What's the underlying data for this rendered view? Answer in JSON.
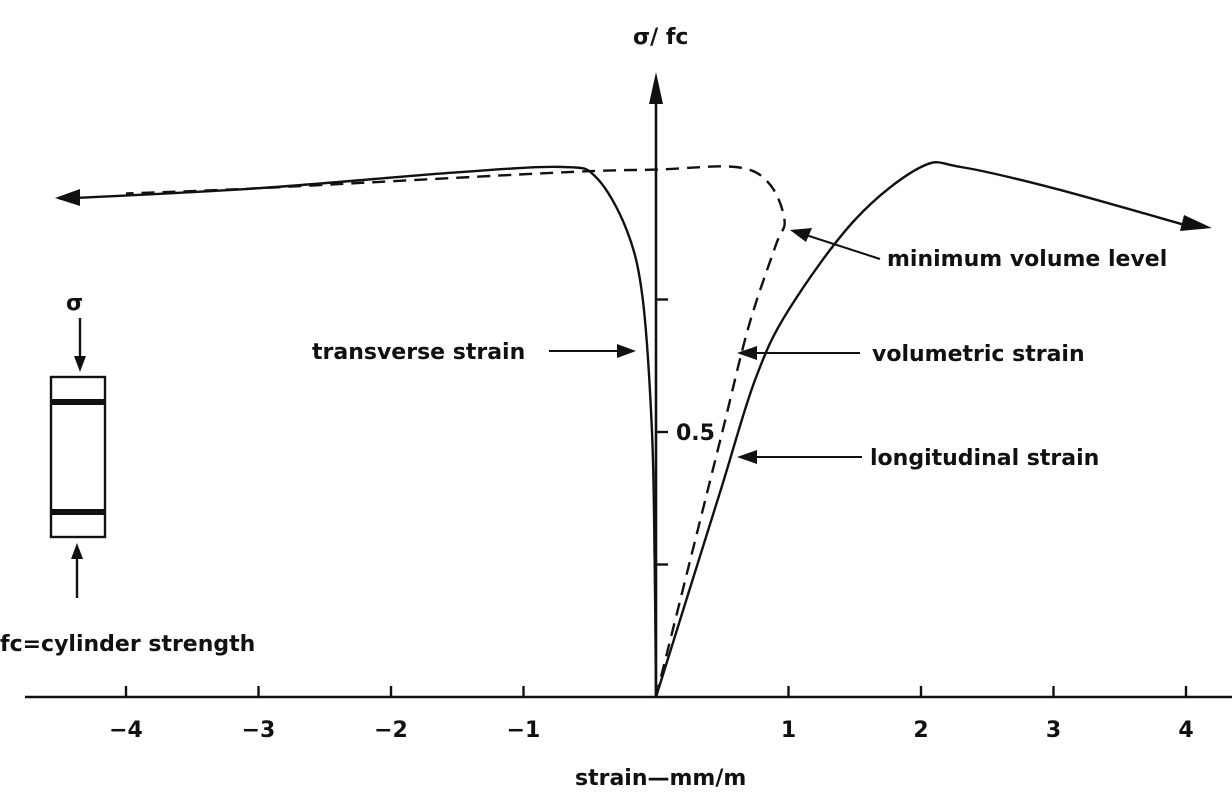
{
  "chart_data": {
    "type": "line",
    "title": "",
    "xlabel": "strain—mm/m",
    "ylabel": "σ/ fc",
    "xlim": [
      -4.8,
      4.3
    ],
    "ylim": [
      0,
      1.05
    ],
    "x_ticks": [
      -4,
      -3,
      -2,
      -1,
      1,
      2,
      3,
      4
    ],
    "x_tick_labels": [
      "−4",
      "−3",
      "−2",
      "−1",
      "1",
      "2",
      "3",
      "4"
    ],
    "y_ticks": [
      0.25,
      0.5,
      0.75
    ],
    "y_tick_labels": [
      "",
      "0.5",
      ""
    ],
    "series": [
      {
        "name": "transverse strain",
        "line": "solid",
        "points": [
          [
            0,
            0
          ],
          [
            -0.01,
            0.25
          ],
          [
            -0.03,
            0.5
          ],
          [
            -0.1,
            0.75
          ],
          [
            -0.22,
            0.88
          ],
          [
            -0.45,
            0.98
          ],
          [
            -0.7,
            1.0
          ],
          [
            -1.5,
            0.99
          ],
          [
            -3.0,
            0.96
          ],
          [
            -4.5,
            0.94
          ]
        ]
      },
      {
        "name": "volumetric strain",
        "line": "dashed",
        "points": [
          [
            0,
            0
          ],
          [
            0.25,
            0.25
          ],
          [
            0.5,
            0.5
          ],
          [
            0.7,
            0.7
          ],
          [
            0.9,
            0.85
          ],
          [
            0.97,
            0.9
          ],
          [
            0.85,
            0.97
          ],
          [
            0.6,
            1.0
          ],
          [
            0,
            0.995
          ],
          [
            -0.7,
            0.99
          ],
          [
            -3.0,
            0.96
          ],
          [
            -4.0,
            0.95
          ]
        ]
      },
      {
        "name": "longitudinal strain",
        "line": "solid",
        "points": [
          [
            0,
            0
          ],
          [
            0.25,
            0.2
          ],
          [
            0.5,
            0.4
          ],
          [
            0.75,
            0.6
          ],
          [
            1.0,
            0.73
          ],
          [
            1.5,
            0.9
          ],
          [
            2.0,
            1.0
          ],
          [
            2.3,
            1.0
          ],
          [
            3.0,
            0.96
          ],
          [
            4.0,
            0.89
          ]
        ]
      }
    ],
    "annotations": [
      {
        "key": "min_volume",
        "text": "minimum volume level"
      },
      {
        "key": "transverse",
        "text": "transverse strain"
      },
      {
        "key": "volumetric",
        "text": "volumetric strain"
      },
      {
        "key": "longitudinal",
        "text": "longitudinal strain"
      }
    ],
    "specimen": {
      "stress_symbol": "σ",
      "note": "fc=cylinder strength"
    }
  }
}
